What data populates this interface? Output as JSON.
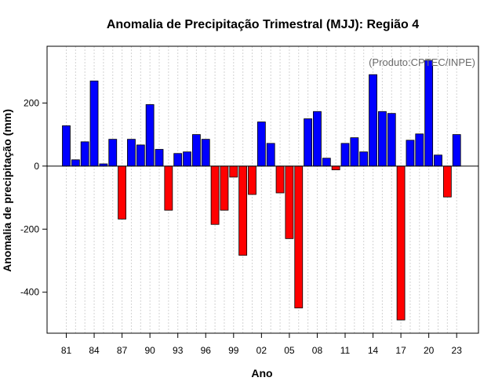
{
  "chart_data": {
    "type": "bar",
    "title": "Anomalia de Precipitação Trimestral (MJJ): Região 4",
    "xlabel": "Ano",
    "ylabel": "Anomalia de precipitação (mm)",
    "annotation": "(Produto:CPTEC/INPE)",
    "ylim": [
      -530,
      380
    ],
    "yticks": [
      200,
      0,
      -200,
      -400
    ],
    "ytick_labels": [
      "200",
      "0",
      "-200",
      "-400"
    ],
    "xtick_labels": [
      "81",
      "84",
      "87",
      "90",
      "93",
      "96",
      "99",
      "02",
      "05",
      "08",
      "11",
      "14",
      "17",
      "20",
      "23"
    ],
    "years": [
      1981,
      1982,
      1983,
      1984,
      1985,
      1986,
      1987,
      1988,
      1989,
      1990,
      1991,
      1992,
      1993,
      1994,
      1995,
      1996,
      1997,
      1998,
      1999,
      2000,
      2001,
      2002,
      2003,
      2004,
      2005,
      2006,
      2007,
      2008,
      2009,
      2010,
      2011,
      2012,
      2013,
      2014,
      2015,
      2016,
      2017,
      2018,
      2019,
      2020,
      2021,
      2022,
      2023
    ],
    "values": [
      128,
      20,
      77,
      270,
      7,
      85,
      -168,
      85,
      67,
      195,
      53,
      -140,
      40,
      45,
      100,
      85,
      -185,
      -140,
      -35,
      -283,
      -90,
      140,
      72,
      -85,
      -230,
      -450,
      150,
      173,
      25,
      -12,
      72,
      90,
      45,
      290,
      173,
      167,
      -488,
      82,
      102,
      335,
      35,
      -98,
      100
    ],
    "positive_color": "#0000ff",
    "negative_color": "#ff0000",
    "grid": true
  }
}
